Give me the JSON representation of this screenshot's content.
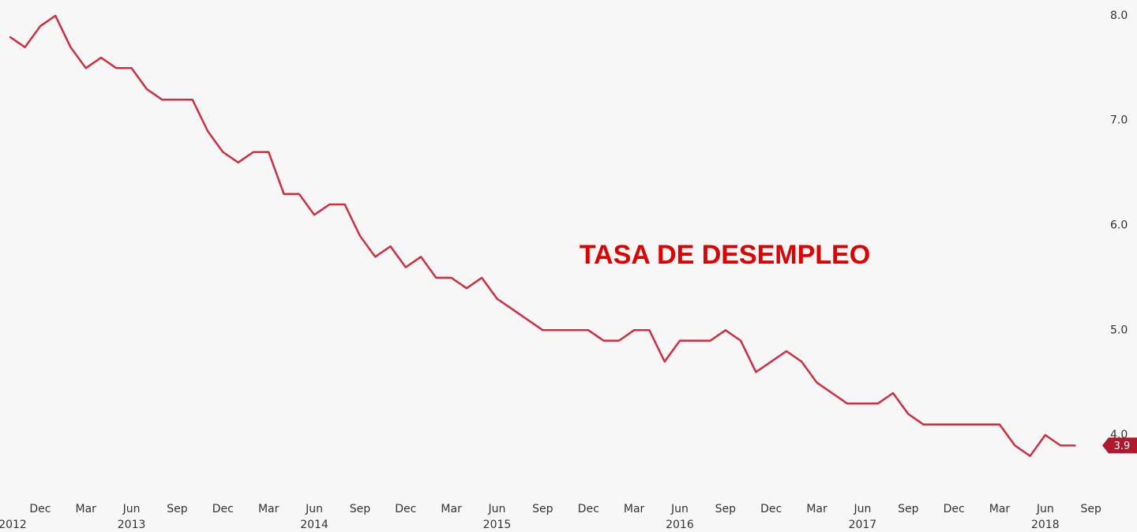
{
  "chart_data": {
    "type": "line",
    "annotation": "TASA DE DESEMPLEO",
    "x": [
      "2012-10",
      "2012-11",
      "2012-12",
      "2013-01",
      "2013-02",
      "2013-03",
      "2013-04",
      "2013-05",
      "2013-06",
      "2013-07",
      "2013-08",
      "2013-09",
      "2013-10",
      "2013-11",
      "2013-12",
      "2014-01",
      "2014-02",
      "2014-03",
      "2014-04",
      "2014-05",
      "2014-06",
      "2014-07",
      "2014-08",
      "2014-09",
      "2014-10",
      "2014-11",
      "2014-12",
      "2015-01",
      "2015-02",
      "2015-03",
      "2015-04",
      "2015-05",
      "2015-06",
      "2015-07",
      "2015-08",
      "2015-09",
      "2015-10",
      "2015-11",
      "2015-12",
      "2016-01",
      "2016-02",
      "2016-03",
      "2016-04",
      "2016-05",
      "2016-06",
      "2016-07",
      "2016-08",
      "2016-09",
      "2016-10",
      "2016-11",
      "2016-12",
      "2017-01",
      "2017-02",
      "2017-03",
      "2017-04",
      "2017-05",
      "2017-06",
      "2017-07",
      "2017-08",
      "2017-09",
      "2017-10",
      "2017-11",
      "2017-12",
      "2018-01",
      "2018-02",
      "2018-03",
      "2018-04",
      "2018-05",
      "2018-06",
      "2018-07",
      "2018-08"
    ],
    "series": [
      {
        "color": "#d12d3f",
        "values": [
          7.8,
          7.7,
          7.9,
          8.0,
          7.7,
          7.5,
          7.6,
          7.5,
          7.5,
          7.3,
          7.2,
          7.2,
          7.2,
          6.9,
          6.7,
          6.6,
          6.7,
          6.7,
          6.3,
          6.3,
          6.1,
          6.2,
          6.2,
          5.9,
          5.7,
          5.8,
          5.6,
          5.7,
          5.5,
          5.5,
          5.4,
          5.5,
          5.3,
          5.2,
          5.1,
          5.0,
          5.0,
          5.0,
          5.0,
          4.9,
          4.9,
          5.0,
          5.0,
          4.7,
          4.9,
          4.9,
          4.9,
          5.0,
          4.9,
          4.6,
          4.7,
          4.8,
          4.7,
          4.5,
          4.4,
          4.3,
          4.3,
          4.3,
          4.4,
          4.2,
          4.1,
          4.1,
          4.1,
          4.1,
          4.1,
          4.1,
          3.9,
          3.8,
          4.0,
          3.9,
          3.9
        ]
      }
    ],
    "xlim": [
      "2012-09",
      "2018-10"
    ],
    "xticks": [
      {
        "value": "2012-12",
        "label": "Dec"
      },
      {
        "value": "2013-03",
        "label": "Mar"
      },
      {
        "value": "2013-06",
        "label": "Jun"
      },
      {
        "value": "2013-09",
        "label": "Sep"
      },
      {
        "value": "2013-12",
        "label": "Dec"
      },
      {
        "value": "2014-03",
        "label": "Mar"
      },
      {
        "value": "2014-06",
        "label": "Jun"
      },
      {
        "value": "2014-09",
        "label": "Sep"
      },
      {
        "value": "2014-12",
        "label": "Dec"
      },
      {
        "value": "2015-03",
        "label": "Mar"
      },
      {
        "value": "2015-06",
        "label": "Jun"
      },
      {
        "value": "2015-09",
        "label": "Sep"
      },
      {
        "value": "2015-12",
        "label": "Dec"
      },
      {
        "value": "2016-03",
        "label": "Mar"
      },
      {
        "value": "2016-06",
        "label": "Jun"
      },
      {
        "value": "2016-09",
        "label": "Sep"
      },
      {
        "value": "2016-12",
        "label": "Dec"
      },
      {
        "value": "2017-03",
        "label": "Mar"
      },
      {
        "value": "2017-06",
        "label": "Jun"
      },
      {
        "value": "2017-09",
        "label": "Sep"
      },
      {
        "value": "2017-12",
        "label": "Dec"
      },
      {
        "value": "2018-03",
        "label": "Mar"
      },
      {
        "value": "2018-06",
        "label": "Jun"
      },
      {
        "value": "2018-09",
        "label": "Sep"
      }
    ],
    "year_ticks": [
      {
        "value": "2012-10",
        "label": "2012"
      },
      {
        "value": "2013-06",
        "label": "2013"
      },
      {
        "value": "2014-06",
        "label": "2014"
      },
      {
        "value": "2015-06",
        "label": "2015"
      },
      {
        "value": "2016-06",
        "label": "2016"
      },
      {
        "value": "2017-06",
        "label": "2017"
      },
      {
        "value": "2018-06",
        "label": "2018"
      }
    ],
    "ylim": [
      3.5,
      8.15
    ],
    "yticks": [
      {
        "value": 4,
        "label": "4.0"
      },
      {
        "value": 5,
        "label": "5.0"
      },
      {
        "value": 6,
        "label": "6.0"
      },
      {
        "value": 7,
        "label": "7.0"
      },
      {
        "value": 8,
        "label": "8.0"
      }
    ],
    "grid": false
  }
}
